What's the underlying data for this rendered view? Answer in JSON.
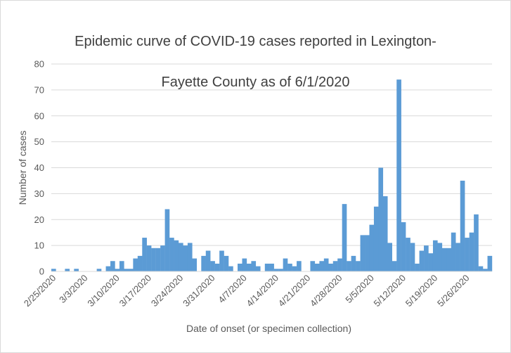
{
  "chart_data": {
    "type": "bar",
    "title_lines": [
      "Epidemic curve of COVID-19 cases reported in Lexington-",
      "Fayette County as of 6/1/2020"
    ],
    "xlabel": "Date of onset (or specimen collection)",
    "ylabel": "Number of cases",
    "ylim": [
      0,
      80
    ],
    "yticks": [
      0,
      10,
      20,
      30,
      40,
      50,
      60,
      70,
      80
    ],
    "grid": true,
    "bar_color": "#5b9bd5",
    "x_tick_labels": [
      "2/25/2020",
      "3/3/2020",
      "3/10/2020",
      "3/17/2020",
      "3/24/2020",
      "3/31/2020",
      "4/7/2020",
      "4/14/2020",
      "4/21/2020",
      "4/28/2020",
      "5/5/2020",
      "5/12/2020",
      "5/19/2020",
      "5/26/2020"
    ],
    "x_tick_every": 7,
    "start_label": "2/25/2020",
    "values": [
      1,
      0,
      0,
      1,
      0,
      1,
      0,
      0,
      0,
      0,
      1,
      0,
      2,
      4,
      1,
      4,
      1,
      1,
      5,
      6,
      13,
      10,
      9,
      9,
      10,
      24,
      13,
      12,
      11,
      10,
      11,
      5,
      0,
      6,
      8,
      4,
      3,
      8,
      6,
      2,
      0,
      3,
      5,
      3,
      4,
      2,
      0,
      3,
      3,
      1,
      1,
      5,
      3,
      2,
      4,
      0,
      0,
      4,
      3,
      4,
      5,
      3,
      4,
      5,
      26,
      4,
      6,
      4,
      14,
      14,
      18,
      25,
      40,
      29,
      11,
      4,
      74,
      19,
      13,
      11,
      3,
      8,
      10,
      7,
      12,
      11,
      9,
      9,
      15,
      11,
      35,
      13,
      15,
      22,
      2,
      1,
      6
    ]
  }
}
